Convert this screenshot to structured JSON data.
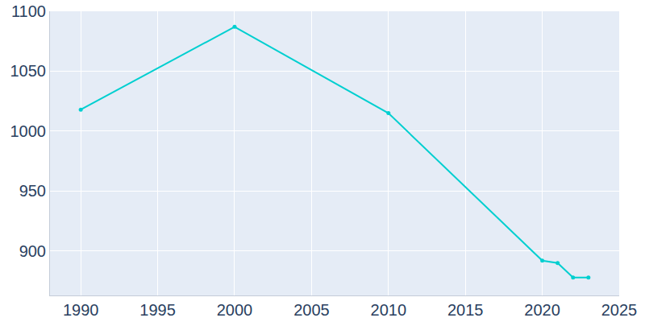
{
  "chart_data": {
    "type": "line",
    "x": [
      1990,
      2000,
      2010,
      2020,
      2021,
      2022,
      2023
    ],
    "values": [
      1018,
      1087,
      1015,
      892,
      890,
      878,
      878
    ],
    "color": "#00cfd0",
    "marker": "circle",
    "xlim": [
      1988,
      2025
    ],
    "xticks": [
      1990,
      1995,
      2000,
      2005,
      2010,
      2015,
      2020,
      2025
    ],
    "ylim": [
      863,
      1100
    ],
    "yticks": [
      900,
      950,
      1000,
      1050,
      1100
    ],
    "grid": true
  }
}
